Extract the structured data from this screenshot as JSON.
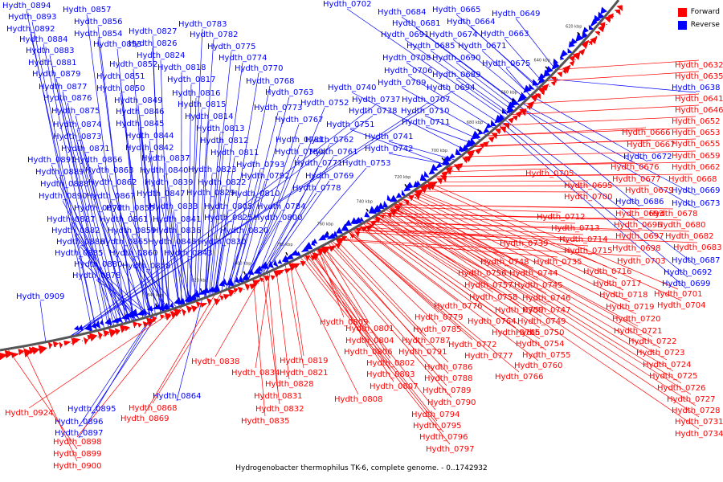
{
  "legend": {
    "forward": "Forward",
    "reverse": "Reverse",
    "forward_color": "#ff0000",
    "reverse_color": "#0000ff"
  },
  "caption": "Hydrogenobacter thermophilus TK-6, complete genome. - 0..1742932",
  "ticks": [
    "620 kbp",
    "640 kbp",
    "660 kbp",
    "680 kbp",
    "700 kbp",
    "720 kbp",
    "740 kbp",
    "760 kbp",
    "780 kbp",
    "800 kbp",
    "820 kbp",
    "840 kbp"
  ],
  "reverse_labels": [
    "Hydth_0894",
    "Hydth_0857",
    "Hydth_0893",
    "Hydth_0856",
    "Hydth_0892",
    "Hydth_0854",
    "Hydth_0827",
    "Hydth_0783",
    "Hydth_0884",
    "Hydth_0853",
    "Hydth_0826",
    "Hydth_0782",
    "Hydth_0883",
    "Hydth_0775",
    "Hydth_0824",
    "Hydth_0774",
    "Hydth_0881",
    "Hydth_0852",
    "Hydth_0818",
    "Hydth_0770",
    "Hydth_0879",
    "Hydth_0851",
    "Hydth_0817",
    "Hydth_0768",
    "Hydth_0877",
    "Hydth_0850",
    "Hydth_0816",
    "Hydth_0763",
    "Hydth_0876",
    "Hydth_0849",
    "Hydth_0815",
    "Hydth_0752",
    "Hydth_0875",
    "Hydth_0846",
    "Hydth_0814",
    "Hydth_0773",
    "Hydth_0874",
    "Hydth_0845",
    "Hydth_0813",
    "Hydth_0767",
    "Hydth_0751",
    "Hydth_0873",
    "Hydth_0844",
    "Hydth_0812",
    "Hydth_0781",
    "Hydth_0762",
    "Hydth_0871",
    "Hydth_0842",
    "Hydth_0811",
    "Hydth_0780",
    "Hydth_0761",
    "Hydth_0891",
    "Hydth_0866",
    "Hydth_0837",
    "Hydth_0793",
    "Hydth_0771",
    "Hydth_0753",
    "Hydth_0889",
    "Hydth_0863",
    "Hydth_0840",
    "Hydth_0823",
    "Hydth_0792",
    "Hydth_0769",
    "Hydth_0888",
    "Hydth_0862",
    "Hydth_0839",
    "Hydth_0822",
    "Hydth_0890",
    "Hydth_0867",
    "Hydth_0847",
    "Hydth_0829",
    "Hydth_0810",
    "Hydth_0778",
    "Hydth_0872",
    "Hydth_0855",
    "Hydth_0833",
    "Hydth_0805",
    "Hydth_0784",
    "Hydth_0887",
    "Hydth_0861",
    "Hydth_0841",
    "Hydth_0825",
    "Hydth_0800",
    "Hydth_0882",
    "Hydth_0859",
    "Hydth_0836",
    "Hydth_0820",
    "Hydth_0886",
    "Hydth_0865",
    "Hydth_0848",
    "Hydth_0830",
    "Hydth_0885",
    "Hydth_0860",
    "Hydth_0843",
    "Hydth_0880",
    "Hydth_0858",
    "Hydth_0878",
    "Hydth_0909",
    "Hydth_0702",
    "Hydth_0684",
    "Hydth_0665",
    "Hydth_0649",
    "Hydth_0681",
    "Hydth_0664",
    "Hydth_0691",
    "Hydth_0674",
    "Hydth_0663",
    "Hydth_0685",
    "Hydth_0671",
    "Hydth_0708",
    "Hydth_0690",
    "Hydth_0675",
    "Hydth_0706",
    "Hydth_0689",
    "Hydth_0740",
    "Hydth_0709",
    "Hydth_0694",
    "Hydth_0737",
    "Hydth_0707",
    "Hydth_0738",
    "Hydth_0710",
    "Hydth_0711",
    "Hydth_0741",
    "Hydth_0742",
    "Hydth_0864",
    "Hydth_0895",
    "Hydth_0896",
    "Hydth_0897",
    "Hydth_0638",
    "Hydth_0672",
    "Hydth_0669",
    "Hydth_0686",
    "Hydth_0673",
    "Hydth_0687",
    "Hydth_0692",
    "Hydth_0699"
  ],
  "forward_labels": [
    "Hydth_0632",
    "Hydth_0635",
    "Hydth_0641",
    "Hydth_0646",
    "Hydth_0652",
    "Hydth_0653",
    "Hydth_0666",
    "Hydth_0667",
    "Hydth_0655",
    "Hydth_0659",
    "Hydth_0676",
    "Hydth_0662",
    "Hydth_0705",
    "Hydth_0677",
    "Hydth_0668",
    "Hydth_0695",
    "Hydth_0679",
    "Hydth_0700",
    "Hydth_0678",
    "Hydth_0693",
    "Hydth_0712",
    "Hydth_0696",
    "Hydth_0680",
    "Hydth_0713",
    "Hydth_0697",
    "Hydth_0682",
    "Hydth_0714",
    "Hydth_0698",
    "Hydth_0683",
    "Hydth_0739",
    "Hydth_0715",
    "Hydth_0703",
    "Hydth_0748",
    "Hydth_0735",
    "Hydth_0716",
    "Hydth_0756",
    "Hydth_0744",
    "Hydth_0757",
    "Hydth_0745",
    "Hydth_0717",
    "Hydth_0701",
    "Hydth_0758",
    "Hydth_0746",
    "Hydth_0718",
    "Hydth_0776",
    "Hydth_0759",
    "Hydth_0747",
    "Hydth_0719",
    "Hydth_0704",
    "Hydth_0779",
    "Hydth_0764",
    "Hydth_0749",
    "Hydth_0720",
    "Hydth_0809",
    "Hydth_0785",
    "Hydth_0765",
    "Hydth_0750",
    "Hydth_0721",
    "Hydth_0801",
    "Hydth_0787",
    "Hydth_0772",
    "Hydth_0754",
    "Hydth_0722",
    "Hydth_0804",
    "Hydth_0791",
    "Hydth_0777",
    "Hydth_0755",
    "Hydth_0723",
    "Hydth_0806",
    "Hydth_0786",
    "Hydth_0760",
    "Hydth_0724",
    "Hydth_0802",
    "Hydth_0788",
    "Hydth_0766",
    "Hydth_0725",
    "Hydth_0803",
    "Hydth_0789",
    "Hydth_0726",
    "Hydth_0807",
    "Hydth_0790",
    "Hydth_0727",
    "Hydth_0808",
    "Hydth_0794",
    "Hydth_0728",
    "Hydth_0795",
    "Hydth_0731",
    "Hydth_0796",
    "Hydth_0734",
    "Hydth_0797",
    "Hydth_0838",
    "Hydth_0819",
    "Hydth_0834",
    "Hydth_0821",
    "Hydth_0828",
    "Hydth_0831",
    "Hydth_0832",
    "Hydth_0835",
    "Hydth_0868",
    "Hydth_0869",
    "Hydth_0924",
    "Hydth_0898",
    "Hydth_0899",
    "Hydth_0900"
  ]
}
